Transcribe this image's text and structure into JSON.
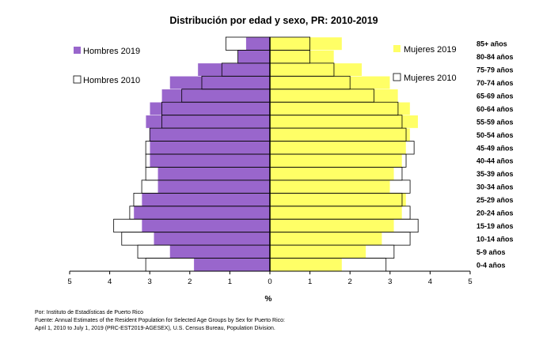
{
  "chart_data": {
    "type": "bar",
    "orientation": "horizontal",
    "subtype": "population-pyramid",
    "title": "Distribución por edad y sexo, PR: 2010-2019",
    "xlabel": "%",
    "xlim": [
      -5,
      5
    ],
    "x_ticks": [
      -5,
      -4,
      -3,
      -2,
      -1,
      0,
      1,
      2,
      3,
      4,
      5
    ],
    "x_tick_labels": [
      "5",
      "4",
      "3",
      "2",
      "1",
      "0",
      "1",
      "2",
      "3",
      "4",
      "5"
    ],
    "categories": [
      "0-4 años",
      "5-9 años",
      "10-14 años",
      "15-19 años",
      "20-24 años",
      "25-29 años",
      "30-34 años",
      "35-39 años",
      "40-44 años",
      "45-49 años",
      "50-54 años",
      "55-59 años",
      "60-64 años",
      "65-69 años",
      "70-74 años",
      "75-79 años",
      "80-84 años",
      "85+ años"
    ],
    "series": [
      {
        "name": "Hombres 2019",
        "side": "left",
        "fill": "#9966cc",
        "values": [
          1.9,
          2.5,
          2.9,
          3.2,
          3.4,
          3.2,
          2.8,
          2.8,
          3.0,
          3.0,
          3.0,
          3.1,
          3.0,
          2.7,
          2.5,
          1.8,
          0.8,
          0.6
        ]
      },
      {
        "name": "Mujeres 2019",
        "side": "right",
        "fill": "#ffff66",
        "values": [
          1.8,
          2.4,
          2.8,
          3.1,
          3.3,
          3.4,
          3.0,
          3.1,
          3.3,
          3.4,
          3.5,
          3.7,
          3.5,
          3.2,
          3.0,
          2.3,
          1.6,
          1.8
        ]
      },
      {
        "name": "Hombres 2010",
        "side": "left",
        "fill": "#ffffff",
        "values": [
          3.1,
          3.3,
          3.7,
          3.9,
          3.5,
          3.4,
          3.2,
          3.1,
          3.1,
          3.1,
          3.0,
          2.7,
          2.7,
          2.2,
          1.7,
          1.2,
          0.8,
          1.1
        ]
      },
      {
        "name": "Mujeres 2010",
        "side": "right",
        "fill": "#ffffff",
        "values": [
          2.9,
          3.1,
          3.5,
          3.7,
          3.5,
          3.3,
          3.5,
          3.3,
          3.4,
          3.6,
          3.4,
          3.3,
          3.2,
          2.6,
          2.0,
          1.6,
          1.0,
          1.0
        ]
      }
    ],
    "legend_position": "inside-top",
    "grid": false
  },
  "sources": {
    "line1": "Por: Instituto de Estadísticas de Puerto Rico",
    "line2": "Fuente: Annual Estimates of the Resident Population for Selected Age Groups by Sex for Puerto Rico:",
    "line3": "April 1, 2010 to July 1, 2019 (PRC-EST2019-AGESEX), U.S. Census Bureau, Population Division."
  }
}
